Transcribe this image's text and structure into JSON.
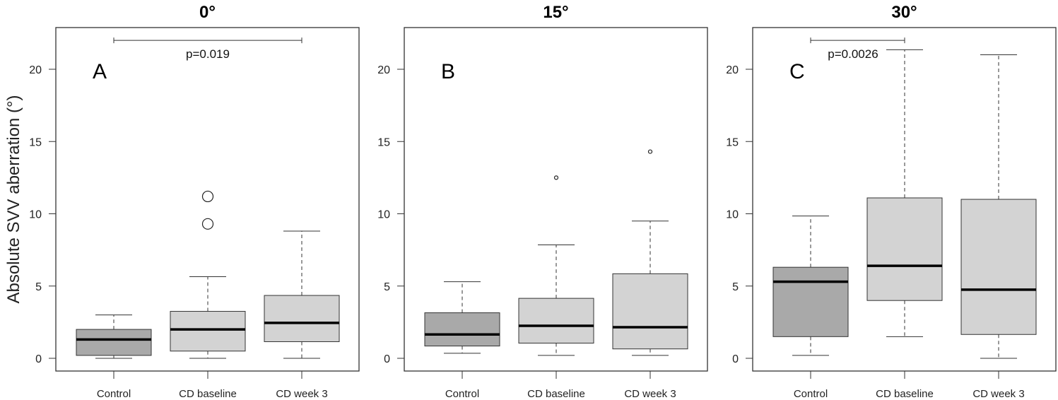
{
  "chart_data": [
    {
      "type": "box",
      "title": "0°",
      "panel_label": "A",
      "ylabel": "Absolute SVV aberration (°)",
      "ylim": [
        -1,
        22.5
      ],
      "yticks": [
        0,
        5,
        10,
        15,
        20
      ],
      "categories": [
        "Control",
        "CD baseline",
        "CD week 3"
      ],
      "boxes": [
        {
          "category": "Control",
          "whisker_low": 0,
          "q1": 0.2,
          "median": 1.3,
          "q3": 2.0,
          "whisker_high": 3.0,
          "outliers": []
        },
        {
          "category": "CD baseline",
          "whisker_low": 0,
          "q1": 0.5,
          "median": 2.0,
          "q3": 3.25,
          "whisker_high": 5.65,
          "outliers": [
            9.3,
            11.2
          ]
        },
        {
          "category": "CD week 3",
          "whisker_low": 0,
          "q1": 1.15,
          "median": 2.45,
          "q3": 4.35,
          "whisker_high": 8.8,
          "outliers": []
        }
      ],
      "annotation": {
        "text": "p=0.019",
        "from": "Control",
        "to": "CD week 3",
        "y": 22
      }
    },
    {
      "type": "box",
      "title": "15°",
      "panel_label": "B",
      "ylim": [
        -1,
        22.5
      ],
      "yticks": [
        0,
        5,
        10,
        15,
        20
      ],
      "categories": [
        "Control",
        "CD baseline",
        "CD week 3"
      ],
      "boxes": [
        {
          "category": "Control",
          "whisker_low": 0.35,
          "q1": 0.85,
          "median": 1.65,
          "q3": 3.15,
          "whisker_high": 5.3,
          "outliers": []
        },
        {
          "category": "CD baseline",
          "whisker_low": 0.2,
          "q1": 1.05,
          "median": 2.25,
          "q3": 4.15,
          "whisker_high": 7.85,
          "outliers": [
            12.5
          ]
        },
        {
          "category": "CD week 3",
          "whisker_low": 0.2,
          "q1": 0.65,
          "median": 2.15,
          "q3": 5.85,
          "whisker_high": 9.5,
          "outliers": [
            14.3
          ]
        }
      ]
    },
    {
      "type": "box",
      "title": "30°",
      "panel_label": "C",
      "ylim": [
        -1,
        22.5
      ],
      "yticks": [
        0,
        5,
        10,
        15,
        20
      ],
      "categories": [
        "Control",
        "CD baseline",
        "CD week 3"
      ],
      "boxes": [
        {
          "category": "Control",
          "whisker_low": 0.2,
          "q1": 1.5,
          "median": 5.3,
          "q3": 6.3,
          "whisker_high": 9.85,
          "outliers": []
        },
        {
          "category": "CD baseline",
          "whisker_low": 1.5,
          "q1": 4.0,
          "median": 6.4,
          "q3": 11.1,
          "whisker_high": 21.35,
          "outliers": []
        },
        {
          "category": "CD week 3",
          "whisker_low": 0,
          "q1": 1.65,
          "median": 4.75,
          "q3": 11.0,
          "whisker_high": 21.0,
          "outliers": []
        }
      ],
      "annotation": {
        "text": "p=0.0026",
        "from": "Control",
        "to": "CD baseline",
        "y": 22
      }
    }
  ],
  "colors": {
    "control_fill": "#a9a9a9",
    "cd_fill": "#d3d3d3",
    "median": "#000000",
    "frame": "#333333"
  }
}
